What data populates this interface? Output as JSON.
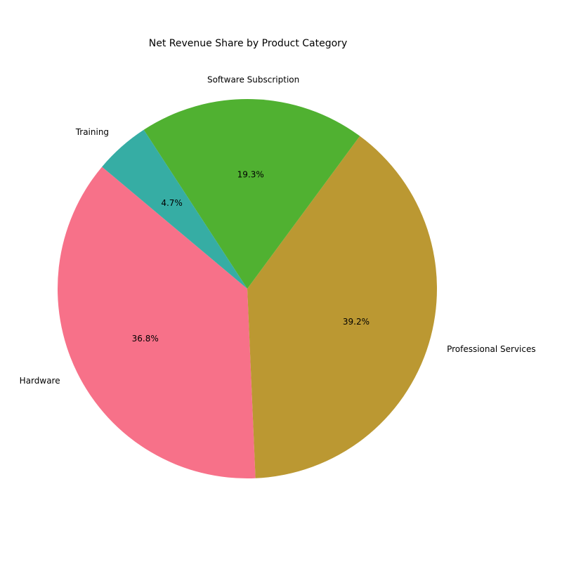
{
  "chart_data": {
    "type": "pie",
    "title": "Net Revenue Share by Product Category",
    "categories": [
      "Hardware",
      "Professional Services",
      "Software Subscription",
      "Training"
    ],
    "values": [
      36.8,
      39.2,
      19.3,
      4.7
    ],
    "percent_labels": [
      "36.8%",
      "39.2%",
      "19.3%",
      "4.7%"
    ],
    "colors": [
      "#f77189",
      "#bb9832",
      "#50b131",
      "#36ada4"
    ],
    "start_angle_deg": 140,
    "direction": "counterclockwise",
    "legend": "none"
  }
}
